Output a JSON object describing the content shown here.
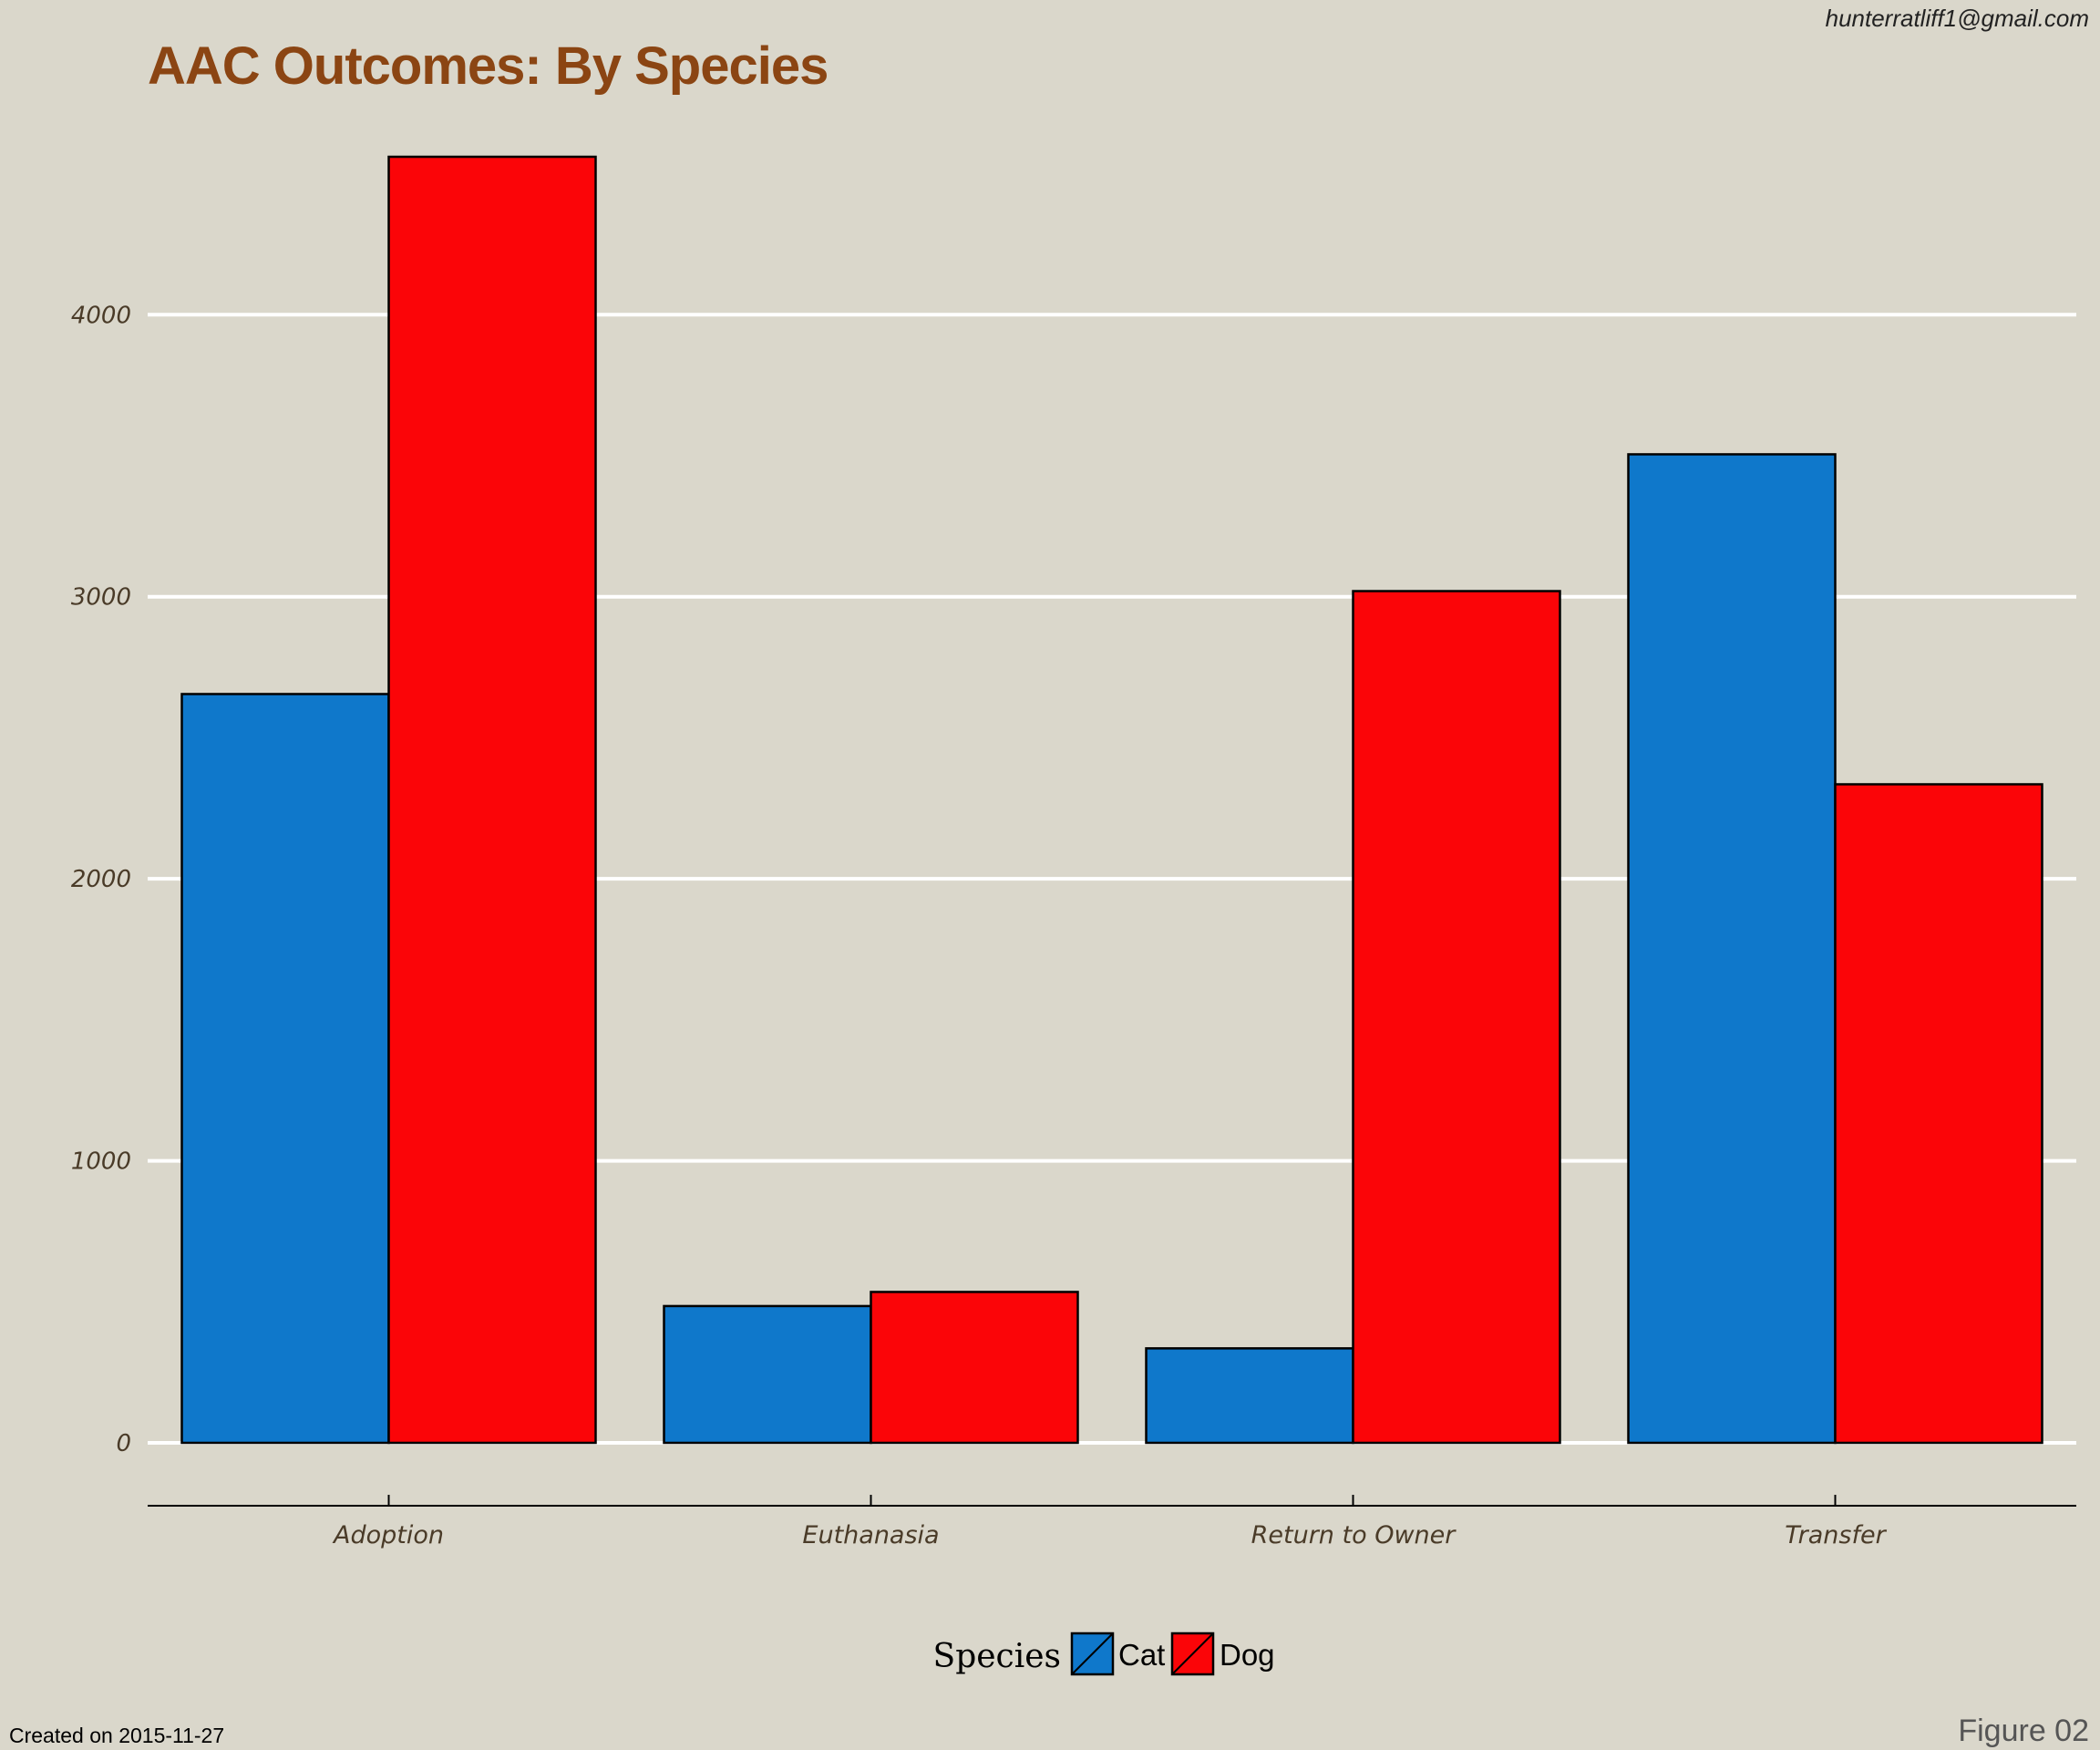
{
  "header": {
    "email": "hunterratliff1@gmail.com"
  },
  "footer": {
    "created": "Created on 2015-11-27",
    "figure": "Figure 02"
  },
  "legend": {
    "title": "Species"
  },
  "chart_data": {
    "type": "bar",
    "title": "AAC Outcomes: By Species",
    "xlabel": "",
    "ylabel": "",
    "categories": [
      "Adoption",
      "Euthanasia",
      "Return to Owner",
      "Transfer"
    ],
    "series": [
      {
        "name": "Cat",
        "color": "#0f78cb",
        "values": [
          2655,
          485,
          335,
          3505
        ]
      },
      {
        "name": "Dog",
        "color": "#fb0508",
        "values": [
          4560,
          535,
          3020,
          2335
        ]
      }
    ],
    "yticks": [
      0,
      1000,
      2000,
      3000,
      4000
    ],
    "ylim": [
      0,
      4560
    ],
    "grid": true,
    "legend_position": "bottom"
  }
}
